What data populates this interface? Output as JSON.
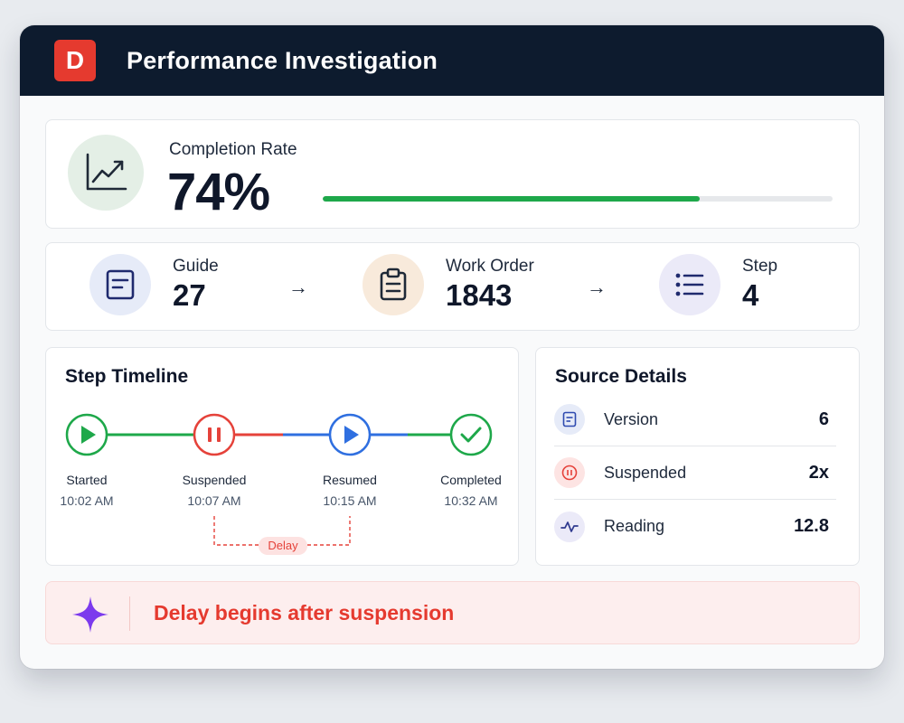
{
  "app": {
    "logo_letter": "D",
    "title": "Performance Investigation"
  },
  "completion": {
    "label": "Completion Rate",
    "value": "74%",
    "progress_fraction": 0.74
  },
  "flow": {
    "items": [
      {
        "label": "Guide",
        "value": "27",
        "icon": "document-icon"
      },
      {
        "label": "Work Order",
        "value": "1843",
        "icon": "clipboard-icon"
      },
      {
        "label": "Step",
        "value": "4",
        "icon": "list-icon"
      }
    ],
    "arrow": "→"
  },
  "timeline": {
    "title": "Step Timeline",
    "events": [
      {
        "label": "Started",
        "time": "10:02 AM",
        "icon": "play-icon",
        "color": "#1ea84a"
      },
      {
        "label": "Suspended",
        "time": "10:07 AM",
        "icon": "pause-icon",
        "color": "#e5423a"
      },
      {
        "label": "Resumed",
        "time": "10:15 AM",
        "icon": "play-icon",
        "color": "#2f6fe0"
      },
      {
        "label": "Completed",
        "time": "10:32 AM",
        "icon": "check-icon",
        "color": "#1ea84a"
      }
    ],
    "delay_label": "Delay"
  },
  "source": {
    "title": "Source Details",
    "rows": [
      {
        "label": "Version",
        "value": "6",
        "icon": "document-icon"
      },
      {
        "label": "Suspended",
        "value": "2x",
        "icon": "pause-icon"
      },
      {
        "label": "Reading",
        "value": "12.8",
        "icon": "pulse-icon"
      }
    ]
  },
  "callout": {
    "text": "Delay begins after suspension",
    "icon": "sparkle-icon"
  },
  "colors": {
    "header": "#0d1b2e",
    "brand": "#e53a2f",
    "success": "#1ea84a",
    "danger": "#e5423a",
    "info": "#2f6fe0",
    "accent_purple": "#7c3aed"
  }
}
